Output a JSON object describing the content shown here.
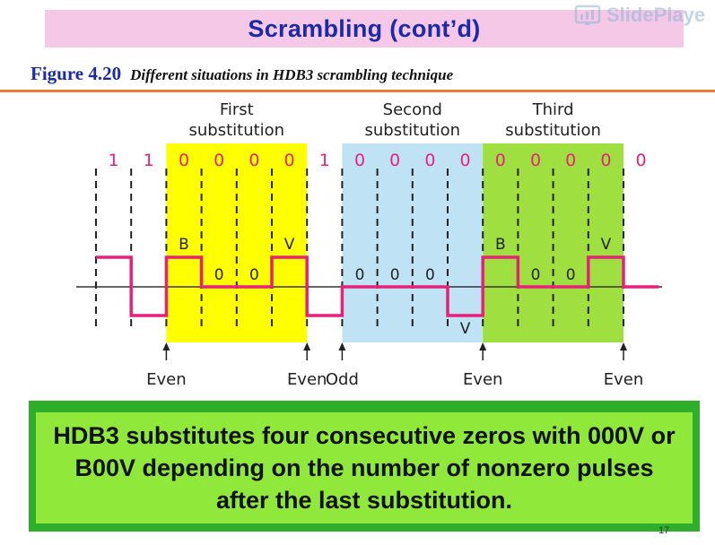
{
  "title": "Scrambling (cont’d)",
  "watermark": {
    "text": "SlidePlaye",
    "icon": "slideplayer-logo-icon"
  },
  "figure": {
    "number": "Figure 4.20",
    "caption": "Different situations in HDB3 scrambling technique"
  },
  "diagram": {
    "bits": [
      "1",
      "1",
      "0",
      "0",
      "0",
      "0",
      "1",
      "0",
      "0",
      "0",
      "0",
      "0",
      "0",
      "0",
      "0",
      "0"
    ],
    "bit_colors": {
      "zero": "#e8227a",
      "one": "#e8227a"
    },
    "regions": [
      {
        "label_line1": "First",
        "label_line2": "substitution",
        "start_slot": 2,
        "end_slot": 6,
        "color": "#ffff00"
      },
      {
        "label_line1": "Second",
        "label_line2": "substitution",
        "start_slot": 7,
        "end_slot": 11,
        "color": "#bfe3f5"
      },
      {
        "label_line1": "Third",
        "label_line2": "substitution",
        "start_slot": 11,
        "end_slot": 15,
        "color": "#9fe040"
      }
    ],
    "levels": [
      1,
      -1,
      1,
      0,
      0,
      1,
      -1,
      0,
      0,
      0,
      -1,
      1,
      0,
      0,
      1,
      0
    ],
    "pulse_labels": [
      {
        "slot": 2,
        "text": "B",
        "pos": "top"
      },
      {
        "slot": 3,
        "text": "0",
        "pos": "mid"
      },
      {
        "slot": 4,
        "text": "0",
        "pos": "mid"
      },
      {
        "slot": 5,
        "text": "V",
        "pos": "top"
      },
      {
        "slot": 7,
        "text": "0",
        "pos": "mid"
      },
      {
        "slot": 8,
        "text": "0",
        "pos": "mid"
      },
      {
        "slot": 9,
        "text": "0",
        "pos": "mid"
      },
      {
        "slot": 10,
        "text": "V",
        "pos": "bottom"
      },
      {
        "slot": 11,
        "text": "B",
        "pos": "top"
      },
      {
        "slot": 12,
        "text": "0",
        "pos": "mid"
      },
      {
        "slot": 13,
        "text": "0",
        "pos": "mid"
      },
      {
        "slot": 14,
        "text": "V",
        "pos": "top"
      }
    ],
    "markers": [
      {
        "boundary": 2,
        "text": "Even"
      },
      {
        "boundary": 6,
        "text": "Even"
      },
      {
        "boundary": 7,
        "text": "Odd"
      },
      {
        "boundary": 11,
        "text": "Even"
      },
      {
        "boundary": 15,
        "text": "Even"
      }
    ],
    "signal_color": "#e8207a"
  },
  "note": {
    "text": "HDB3 substitutes four consecutive zeros with 000V or B00V depending on the number of nonzero pulses after the last substitution."
  },
  "page_number": "17"
}
